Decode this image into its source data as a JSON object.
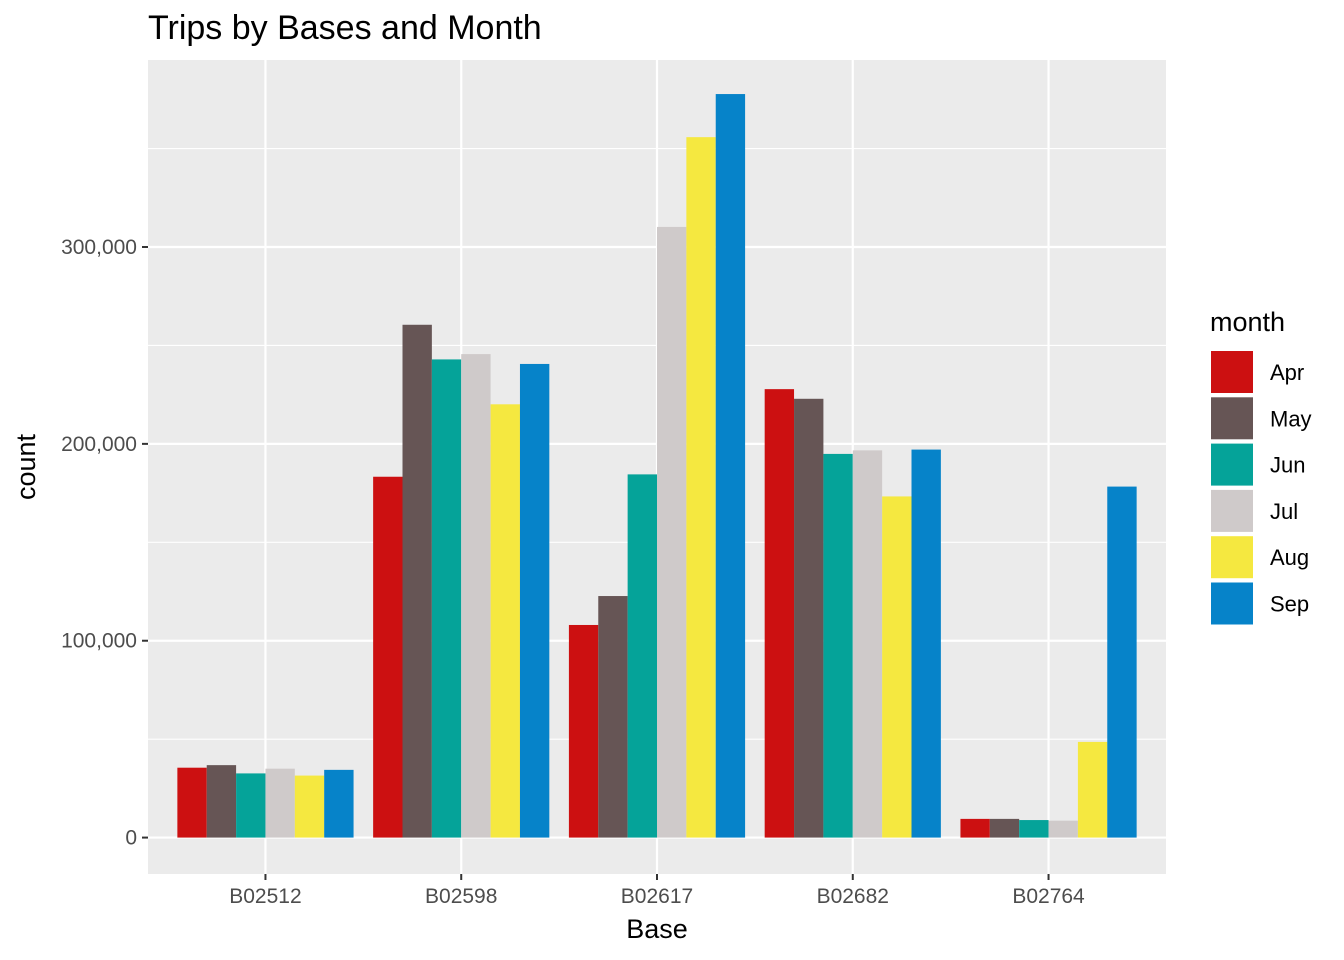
{
  "chart_data": {
    "type": "bar",
    "title": "Trips by Bases and Month",
    "xlabel": "Base",
    "ylabel": "count",
    "categories": [
      "B02512",
      "B02598",
      "B02617",
      "B02682",
      "B02764"
    ],
    "ylim": [
      -18500,
      395000
    ],
    "yticks": [
      0,
      100000,
      200000,
      300000
    ],
    "ytick_labels": [
      "0",
      "100,000",
      "200,000",
      "300,000"
    ],
    "grid": true,
    "legend_title": "month",
    "legend_position": "right",
    "series": [
      {
        "name": "Apr",
        "color": "#CC1011",
        "values": [
          35500,
          183300,
          108000,
          227800,
          9500
        ]
      },
      {
        "name": "May",
        "color": "#665555",
        "values": [
          36800,
          260500,
          122700,
          222900,
          9500
        ]
      },
      {
        "name": "Jun",
        "color": "#05A399",
        "values": [
          32600,
          242900,
          184500,
          194900,
          8900
        ]
      },
      {
        "name": "Jul",
        "color": "#CFCACA",
        "values": [
          35000,
          245600,
          310200,
          196700,
          8600
        ]
      },
      {
        "name": "Aug",
        "color": "#F5E840",
        "values": [
          31500,
          220100,
          355800,
          173300,
          48600
        ]
      },
      {
        "name": "Sep",
        "color": "#0683C9",
        "values": [
          34400,
          240600,
          377700,
          197100,
          178300
        ]
      }
    ]
  }
}
